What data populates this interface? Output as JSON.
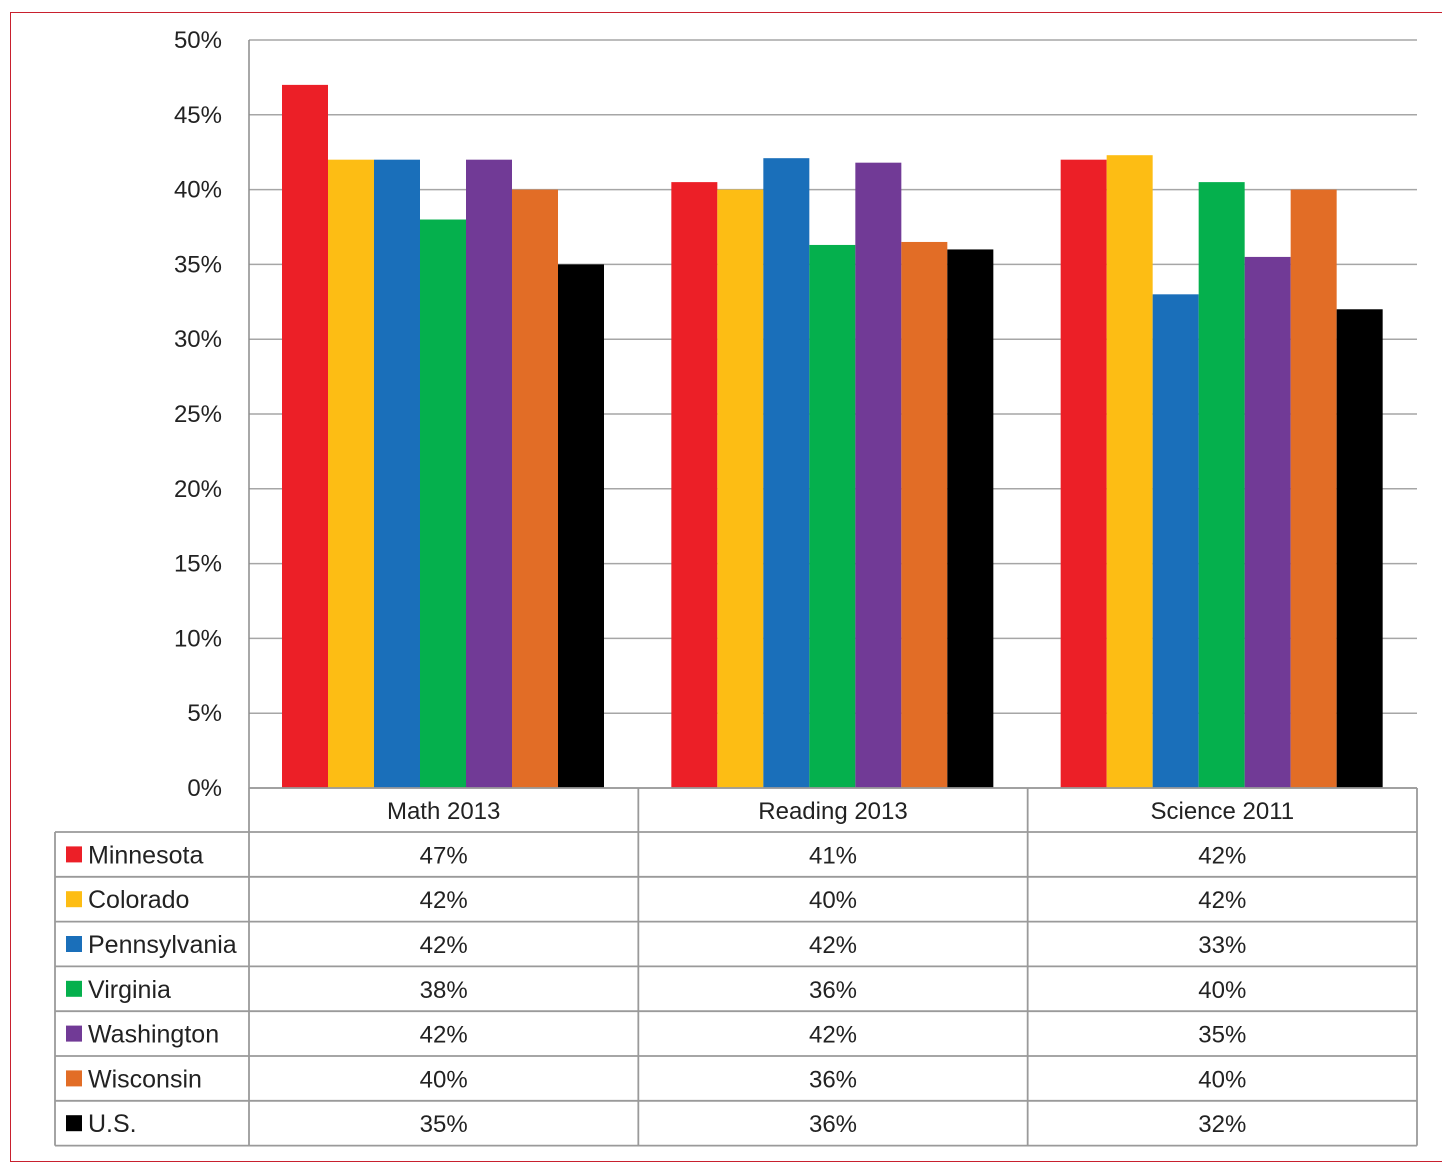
{
  "chart_data": {
    "type": "bar",
    "title": "",
    "xlabel": "",
    "ylabel": "",
    "ylim": [
      0,
      50
    ],
    "ytick_step": 5,
    "ytick_suffix": "%",
    "grid": true,
    "legend": "data-table-below",
    "categories": [
      "Math 2013",
      "Reading 2013",
      "Science 2011"
    ],
    "series": [
      {
        "name": "Minnesota",
        "color": "#ec1f27",
        "values": [
          47,
          40.5,
          42
        ],
        "labels": [
          "47%",
          "41%",
          "42%"
        ]
      },
      {
        "name": "Colorado",
        "color": "#fdbd14",
        "values": [
          42,
          40,
          42.3
        ],
        "labels": [
          "42%",
          "40%",
          "42%"
        ]
      },
      {
        "name": "Pennsylvania",
        "color": "#1a6fba",
        "values": [
          42,
          42.1,
          33
        ],
        "labels": [
          "42%",
          "42%",
          "33%"
        ]
      },
      {
        "name": "Virginia",
        "color": "#05b04d",
        "values": [
          38,
          36.3,
          40.5
        ],
        "labels": [
          "38%",
          "36%",
          "40%"
        ]
      },
      {
        "name": "Washington",
        "color": "#713a96",
        "values": [
          42,
          41.8,
          35.5
        ],
        "labels": [
          "42%",
          "42%",
          "35%"
        ]
      },
      {
        "name": "Wisconsin",
        "color": "#e26d26",
        "values": [
          40,
          36.5,
          40
        ],
        "labels": [
          "40%",
          "36%",
          "40%"
        ]
      },
      {
        "name": "U.S.",
        "color": "#000000",
        "values": [
          35,
          36,
          32
        ],
        "labels": [
          "35%",
          "36%",
          "32%"
        ]
      }
    ]
  }
}
